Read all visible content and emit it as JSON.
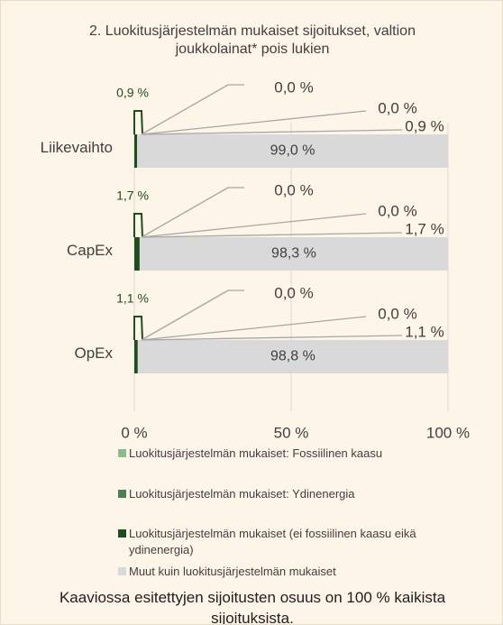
{
  "chart_data": {
    "type": "stacked-barh",
    "title": "2. Luokitusjärjestelmän mukaiset sijoitukset, valtion joukkolainat* pois lukien",
    "categories": [
      "Liikevaihto",
      "CapEx",
      "OpEx"
    ],
    "series": [
      {
        "name": "Luokitusjärjestelmän mukaiset: Fossiilinen kaasu",
        "color": "#8dbb8f",
        "values": [
          0.0,
          0.0,
          0.0
        ],
        "value_labels": [
          "0,0 %",
          "0,0 %",
          "0,0 %"
        ]
      },
      {
        "name": "Luokitusjärjestelmän mukaiset: Ydinenergia",
        "color": "#4e7f53",
        "values": [
          0.0,
          0.0,
          0.0
        ],
        "value_labels": [
          "0,0 %",
          "0,0 %",
          "0,0 %"
        ]
      },
      {
        "name": "Luokitusjärjestelmän mukaiset (ei fossiilinen kaasu eikä ydinenergia)",
        "color": "#1c4e1e",
        "values": [
          0.9,
          1.7,
          1.1
        ],
        "value_labels": [
          "0,9 %",
          "1,7 %",
          "1,1 %"
        ]
      },
      {
        "name": "Muut kuin luokitusjärjestelmän mukaiset",
        "color": "#d9d9d9",
        "values": [
          99.0,
          98.3,
          98.8
        ],
        "value_labels": [
          "99,0 %",
          "98,3 %",
          "98,8 %"
        ]
      }
    ],
    "xlim": [
      0,
      100
    ],
    "xticks": [
      {
        "value": 0,
        "label": "0 %"
      },
      {
        "value": 50,
        "label": "50 %"
      },
      {
        "value": 100,
        "label": "100 %"
      }
    ],
    "grid": true,
    "note": "Kaaviossa esitettyjen sijoitusten osuus on 100 % kaikista sijoituksista."
  }
}
